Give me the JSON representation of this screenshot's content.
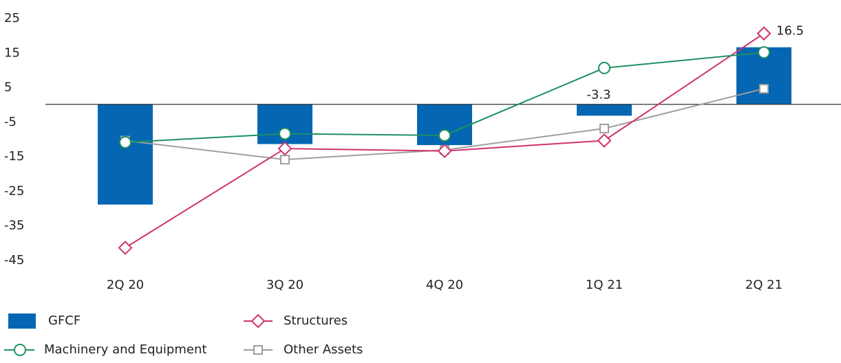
{
  "chart_data": {
    "type": "bar",
    "categories": [
      "2Q 20",
      "3Q 20",
      "4Q 20",
      "1Q 21",
      "2Q 21"
    ],
    "yticks": [
      25,
      15,
      5,
      -5,
      -15,
      -25,
      -35,
      -45
    ],
    "ylim": [
      -45,
      25
    ],
    "series": [
      {
        "name": "GFCF",
        "kind": "bar",
        "color": "#0567b3",
        "values": [
          -29.0,
          -11.5,
          -11.8,
          -3.3,
          16.5
        ]
      },
      {
        "name": "Machinery and Equipment",
        "kind": "line",
        "marker": "circle",
        "color": "#1e9160",
        "values": [
          -11.0,
          -8.5,
          -9.0,
          10.5,
          15.0
        ]
      },
      {
        "name": "Structures",
        "kind": "line",
        "marker": "diamond",
        "color": "#d0336c",
        "values": [
          -41.5,
          -12.8,
          -13.5,
          -10.5,
          20.5
        ]
      },
      {
        "name": "Other Assets",
        "kind": "line",
        "marker": "square",
        "color": "#9e9e9e",
        "values": [
          -10.5,
          -16.0,
          -13.2,
          -7.0,
          4.5
        ]
      }
    ],
    "data_labels": [
      {
        "category": "1Q 21",
        "series": "GFCF",
        "text": "-3.3"
      },
      {
        "category": "2Q 21",
        "series": "GFCF",
        "text": "16.5"
      }
    ]
  }
}
